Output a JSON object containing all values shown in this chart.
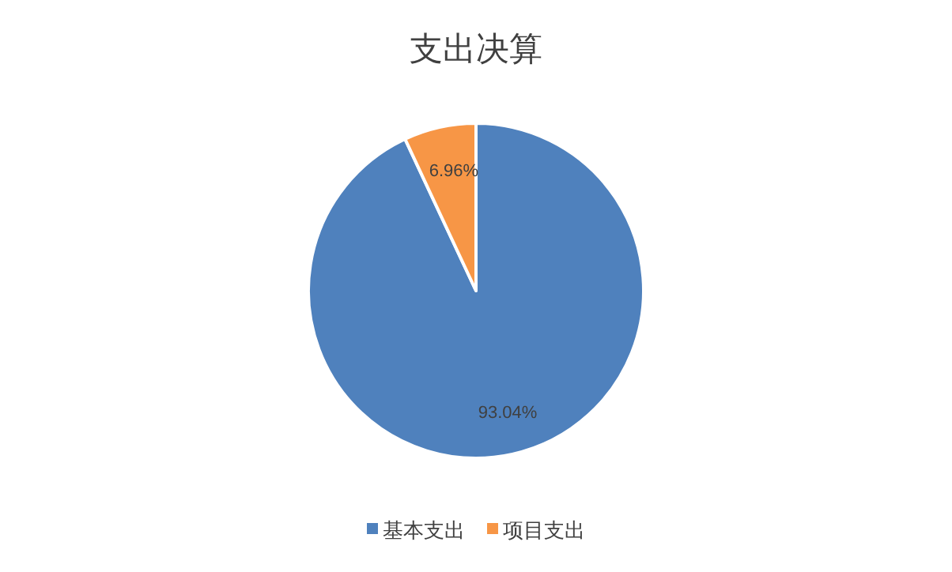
{
  "chart_data": {
    "type": "pie",
    "title": "支出决算",
    "categories": [
      "基本支出",
      "项目支出"
    ],
    "values": [
      93.04,
      6.96
    ],
    "colors": [
      "#4f81bd",
      "#f79646"
    ],
    "value_labels": [
      "93.04%",
      "6.96%"
    ],
    "legend": "bottom"
  }
}
